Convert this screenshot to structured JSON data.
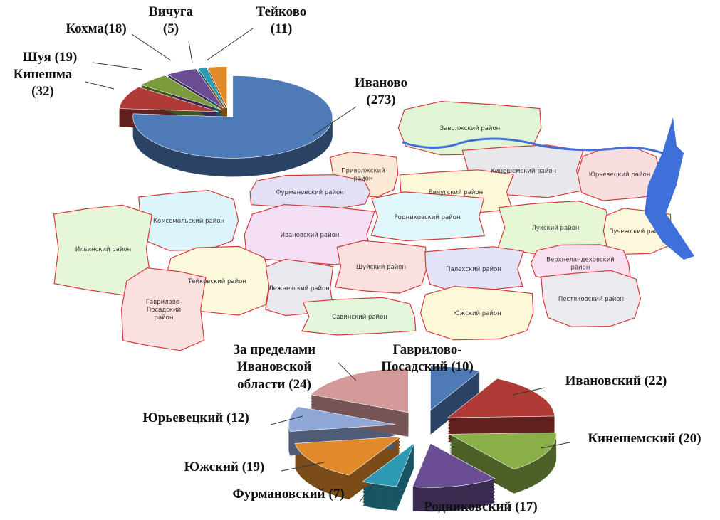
{
  "map": {
    "regions": [
      {
        "label": [
          "Заволжский район"
        ]
      },
      {
        "label": [
          "Кинешемский район"
        ]
      },
      {
        "label": [
          "Юрьевецкий район"
        ]
      },
      {
        "label": [
          "Приволжский",
          "район"
        ]
      },
      {
        "label": [
          "Вичугский район"
        ]
      },
      {
        "label": [
          "Фурмановский район"
        ]
      },
      {
        "label": [
          "Родниковский район"
        ]
      },
      {
        "label": [
          "Комсомольский район"
        ]
      },
      {
        "label": [
          "Ивановский район"
        ]
      },
      {
        "label": [
          "Лухский район"
        ]
      },
      {
        "label": [
          "Пучежский район"
        ]
      },
      {
        "label": [
          "Ильинский район"
        ]
      },
      {
        "label": [
          "Верхнеландеховский",
          "район"
        ]
      },
      {
        "label": [
          "Шуйский район"
        ]
      },
      {
        "label": [
          "Палехский район"
        ]
      },
      {
        "label": [
          "Тейковский район"
        ]
      },
      {
        "label": [
          "Лежневский район"
        ]
      },
      {
        "label": [
          "Пестяковский район"
        ]
      },
      {
        "label": [
          "Гаврилово-",
          "Посадский",
          "район"
        ]
      },
      {
        "label": [
          "Савинский район"
        ]
      },
      {
        "label": [
          "Южский район"
        ]
      }
    ]
  },
  "chart_data": [
    {
      "type": "pie3d",
      "labels": [
        [
          "Иваново",
          "(273)"
        ],
        [
          "Кинешма",
          "(32)"
        ],
        [
          "Шуя (19)"
        ],
        [
          "Кохма(18)"
        ],
        [
          "Вичуга",
          "(5)"
        ],
        [
          "Тейково",
          "(11)"
        ]
      ],
      "values": [
        273,
        32,
        19,
        18,
        5,
        11
      ],
      "colors": [
        "#4f7ab8",
        "#b03a36",
        "#7a9a3c",
        "#6a4d92",
        "#2d9ab3",
        "#e08a2c"
      ]
    },
    {
      "type": "pie3d",
      "labels": [
        [
          "Гаврилово-",
          "Посадский (10)"
        ],
        [
          "Ивановский (22)"
        ],
        [
          "Кинешемский (20)"
        ],
        [
          "Родниковский (17)"
        ],
        [
          "Фурмановский (7)"
        ],
        [
          "Южский (19)"
        ],
        [
          "Юрьевецкий (12)"
        ],
        [
          "За пределами",
          "Ивановской",
          "области (24)"
        ]
      ],
      "values": [
        10,
        22,
        20,
        17,
        7,
        19,
        12,
        24
      ],
      "colors": [
        "#4f7ab8",
        "#b03a36",
        "#8aae48",
        "#6a4d92",
        "#2d9ab3",
        "#e08a2c",
        "#8fa8d8",
        "#d49a9a"
      ]
    }
  ]
}
